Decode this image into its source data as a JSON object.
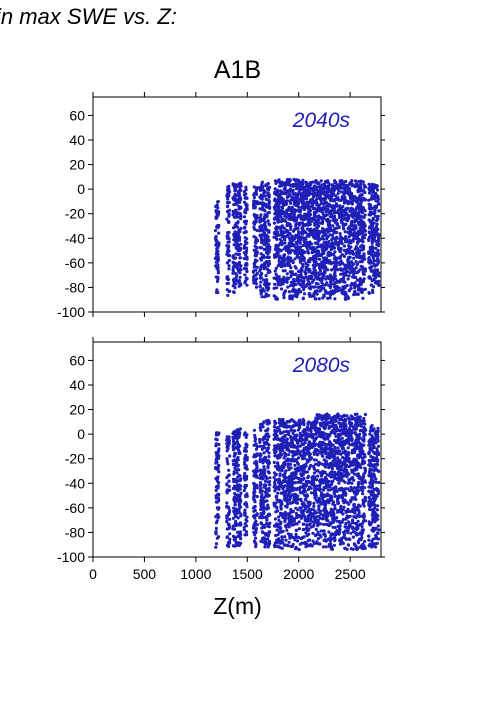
{
  "header_text": "in max SWE vs. Z:",
  "scenario_title": "A1B",
  "x_label": "Z(m)",
  "colors": {
    "points": "#1f1fb8",
    "axis": "#000000"
  },
  "chart_data": [
    {
      "type": "scatter",
      "title": "2040s",
      "xlim": [
        0,
        2800
      ],
      "ylim": [
        -100,
        75
      ],
      "yticks": [
        -100,
        -80,
        -60,
        -40,
        -20,
        0,
        20,
        40,
        60
      ],
      "xticks": [
        0,
        500,
        1000,
        1500,
        2000,
        2500
      ],
      "xticklabels_shown": false,
      "grid": false,
      "point_groups": [
        {
          "x": [
            1190,
            1225
          ],
          "ymin": -85,
          "ymax": -10
        },
        {
          "x": [
            1300,
            1330
          ],
          "ymin": -88,
          "ymax": 3
        },
        {
          "x": [
            1360,
            1400
          ],
          "ymin": -85,
          "ymax": 5
        },
        {
          "x": [
            1400,
            1440
          ],
          "ymin": -80,
          "ymax": 5
        },
        {
          "x": [
            1470,
            1500
          ],
          "ymin": -80,
          "ymax": 4
        },
        {
          "x": [
            1560,
            1600
          ],
          "ymin": -80,
          "ymax": 4
        },
        {
          "x": [
            1620,
            1720
          ],
          "ymin": -88,
          "ymax": 6
        },
        {
          "x": [
            1760,
            2050
          ],
          "ymin": -90,
          "ymax": 8
        },
        {
          "x": [
            2050,
            2150
          ],
          "ymin": -88,
          "ymax": 6
        },
        {
          "x": [
            2150,
            2650
          ],
          "ymin": -90,
          "ymax": 7
        },
        {
          "x": [
            2680,
            2780
          ],
          "ymin": -85,
          "ymax": 4
        }
      ]
    },
    {
      "type": "scatter",
      "title": "2080s",
      "xlim": [
        0,
        2800
      ],
      "ylim": [
        -100,
        75
      ],
      "yticks": [
        -100,
        -80,
        -60,
        -40,
        -20,
        0,
        20,
        40,
        60
      ],
      "xticks": [
        0,
        500,
        1000,
        1500,
        2000,
        2500
      ],
      "xticklabels_shown": true,
      "grid": false,
      "point_groups": [
        {
          "x": [
            1190,
            1225
          ],
          "ymin": -93,
          "ymax": 2
        },
        {
          "x": [
            1300,
            1330
          ],
          "ymin": -93,
          "ymax": 0
        },
        {
          "x": [
            1360,
            1400
          ],
          "ymin": -93,
          "ymax": 3
        },
        {
          "x": [
            1400,
            1440
          ],
          "ymin": -92,
          "ymax": 5
        },
        {
          "x": [
            1470,
            1500
          ],
          "ymin": -92,
          "ymax": 2
        },
        {
          "x": [
            1560,
            1600
          ],
          "ymin": -93,
          "ymax": 4
        },
        {
          "x": [
            1620,
            1720
          ],
          "ymin": -94,
          "ymax": 12
        },
        {
          "x": [
            1760,
            2050
          ],
          "ymin": -94,
          "ymax": 12
        },
        {
          "x": [
            2050,
            2150
          ],
          "ymin": -94,
          "ymax": 10
        },
        {
          "x": [
            2150,
            2650
          ],
          "ymin": -94,
          "ymax": 17
        },
        {
          "x": [
            2680,
            2780
          ],
          "ymin": -94,
          "ymax": 8
        }
      ]
    }
  ]
}
